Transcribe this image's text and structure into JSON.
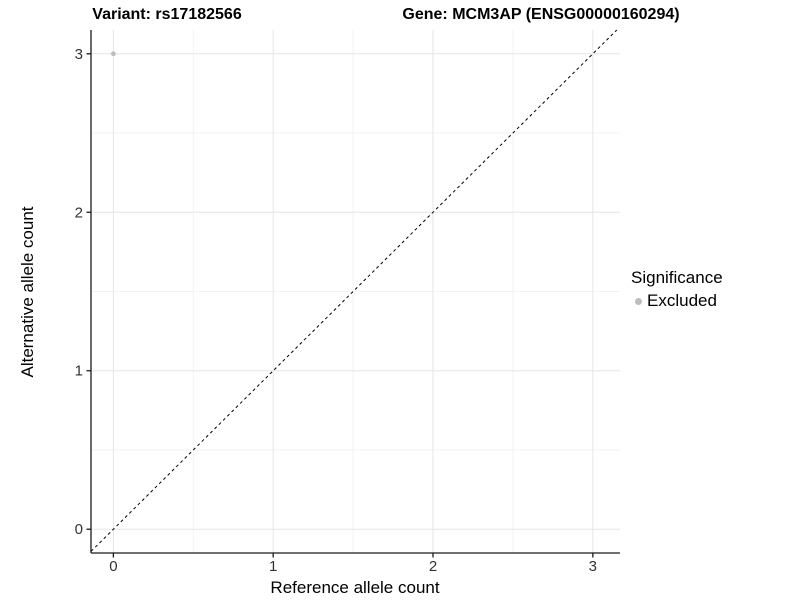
{
  "figure": {
    "title_variant": "Variant: rs17182566",
    "title_gene": "Gene: MCM3AP (ENSG00000160294)"
  },
  "axes": {
    "x_title": "Reference allele count",
    "y_title": "Alternative allele count"
  },
  "legend": {
    "title": "Significance",
    "items": [
      {
        "label": "Excluded",
        "marker": "dot",
        "color": "#bdbdbd"
      }
    ]
  },
  "chart_data": {
    "type": "scatter",
    "title": "Variant: rs17182566 | Gene: MCM3AP (ENSG00000160294)",
    "xlabel": "Reference allele count",
    "ylabel": "Alternative allele count",
    "points": [
      {
        "x": 0,
        "y": 3,
        "series": "Excluded"
      }
    ],
    "series_colors": {
      "Excluded": "#bdbdbd"
    },
    "x_ticks": [
      0,
      1,
      2,
      3
    ],
    "y_ticks": [
      0,
      1,
      2,
      3
    ],
    "x_minor_ticks": [
      0.5,
      1.5,
      2.5
    ],
    "y_minor_ticks": [
      0.5,
      1.5,
      2.5
    ],
    "xlim": [
      -0.14,
      3.17
    ],
    "ylim": [
      -0.15,
      3.15
    ],
    "grid": "major+minor",
    "legend_position": "right",
    "reference_line": {
      "kind": "identity",
      "style": "dashed",
      "color": "#000000",
      "dash": [
        3,
        3
      ]
    },
    "point_radius": 2.4,
    "colors": {
      "grid_major": "#e6e6e6",
      "grid_minor": "#f3f3f3",
      "axis_line": "#1a1a1a",
      "tick_label": "#333333",
      "background": "#ffffff"
    }
  }
}
